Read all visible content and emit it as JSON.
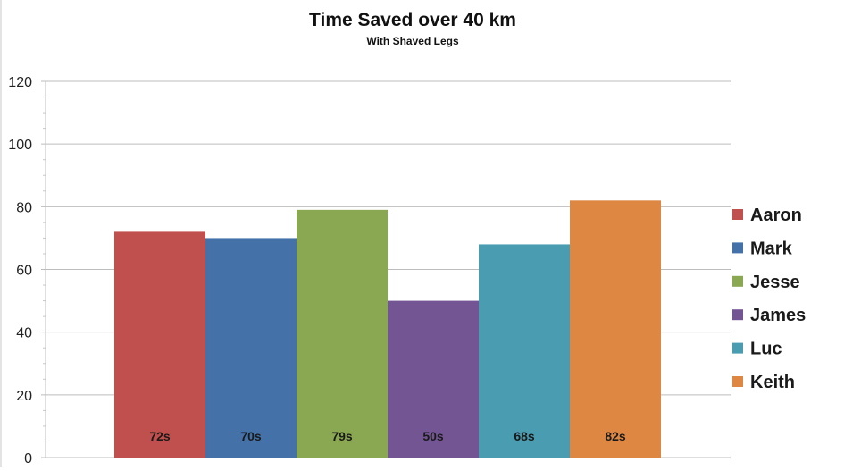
{
  "chart_data": {
    "type": "bar",
    "title": "Time Saved over 40 km",
    "subtitle": "With Shaved Legs",
    "xlabel": "",
    "ylabel": "",
    "ylim": [
      0,
      120
    ],
    "yticks": [
      0,
      20,
      40,
      60,
      80,
      100,
      120
    ],
    "grid": true,
    "legend_position": "right",
    "series": [
      {
        "name": "Aaron",
        "value": 72,
        "label": "72s",
        "color": "#c0504d"
      },
      {
        "name": "Mark",
        "value": 70,
        "label": "70s",
        "color": "#4472a8"
      },
      {
        "name": "Jesse",
        "value": 79,
        "label": "79s",
        "color": "#8aa751"
      },
      {
        "name": "James",
        "value": 50,
        "label": "50s",
        "color": "#735594"
      },
      {
        "name": "Luc",
        "value": 68,
        "label": "68s",
        "color": "#4a9db1"
      },
      {
        "name": "Keith",
        "value": 82,
        "label": "82s",
        "color": "#de8743"
      }
    ]
  }
}
